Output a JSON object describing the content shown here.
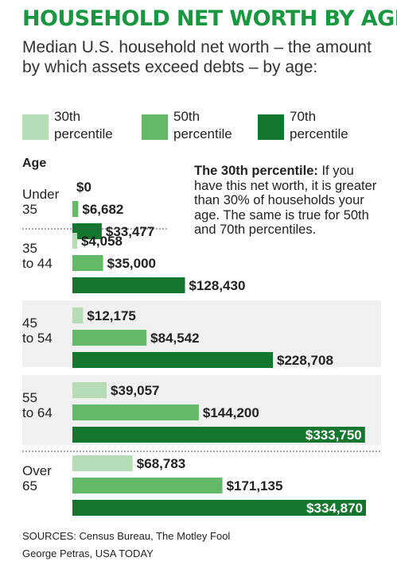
{
  "title": "HOUSEHOLD NET WORTH BY AGE",
  "subtitle": "Median U.S. household net worth – the amount by which assets exceed debts – by age:",
  "annotation": {
    "lead": "The 30th percentile:",
    "body": " If you have this net worth, it is greater than 30% of households your age. The same is true for 50th and 70th percentiles."
  },
  "source": "SOURCES:  Census  Bureau, The Motley Fool",
  "credit": "George Petras, USA TODAY",
  "colors": {
    "title": "#1a9540",
    "p30": "#b5dcb4",
    "p50": "#64b968",
    "p70": "#12762e"
  },
  "chart_data": {
    "type": "bar",
    "orientation": "horizontal",
    "ylabel": "Age",
    "categories": [
      "Under 35",
      "35 to 44",
      "45 to 54",
      "55 to 64",
      "Over 65"
    ],
    "category_lines": [
      [
        "Under",
        "35"
      ],
      [
        "35",
        "to 44"
      ],
      [
        "45",
        "to 54"
      ],
      [
        "55",
        "to 64"
      ],
      [
        "Over",
        "65"
      ]
    ],
    "series": [
      {
        "name": "30th percentile",
        "legend_lines": [
          "30th",
          "percentile"
        ],
        "color": "#b5dcb4",
        "values": [
          0,
          4058,
          12175,
          39057,
          68783
        ]
      },
      {
        "name": "50th percentile",
        "legend_lines": [
          "50th",
          "percentile"
        ],
        "color": "#64b968",
        "values": [
          6682,
          35000,
          84542,
          144200,
          171135
        ]
      },
      {
        "name": "70th percentile",
        "legend_lines": [
          "70th",
          "percentile"
        ],
        "color": "#12762e",
        "values": [
          33477,
          128430,
          228708,
          333750,
          334870
        ]
      }
    ],
    "value_labels": [
      [
        "$0",
        "$6,682",
        "$33,477"
      ],
      [
        "$4,058",
        "$35,000",
        "$128,430"
      ],
      [
        "$12,175",
        "$84,542",
        "$228,708"
      ],
      [
        "$39,057",
        "$144,200",
        "$333,750"
      ],
      [
        "$68,783",
        "$171,135",
        "$334,870"
      ]
    ],
    "grid": false,
    "legend_position": "top"
  }
}
